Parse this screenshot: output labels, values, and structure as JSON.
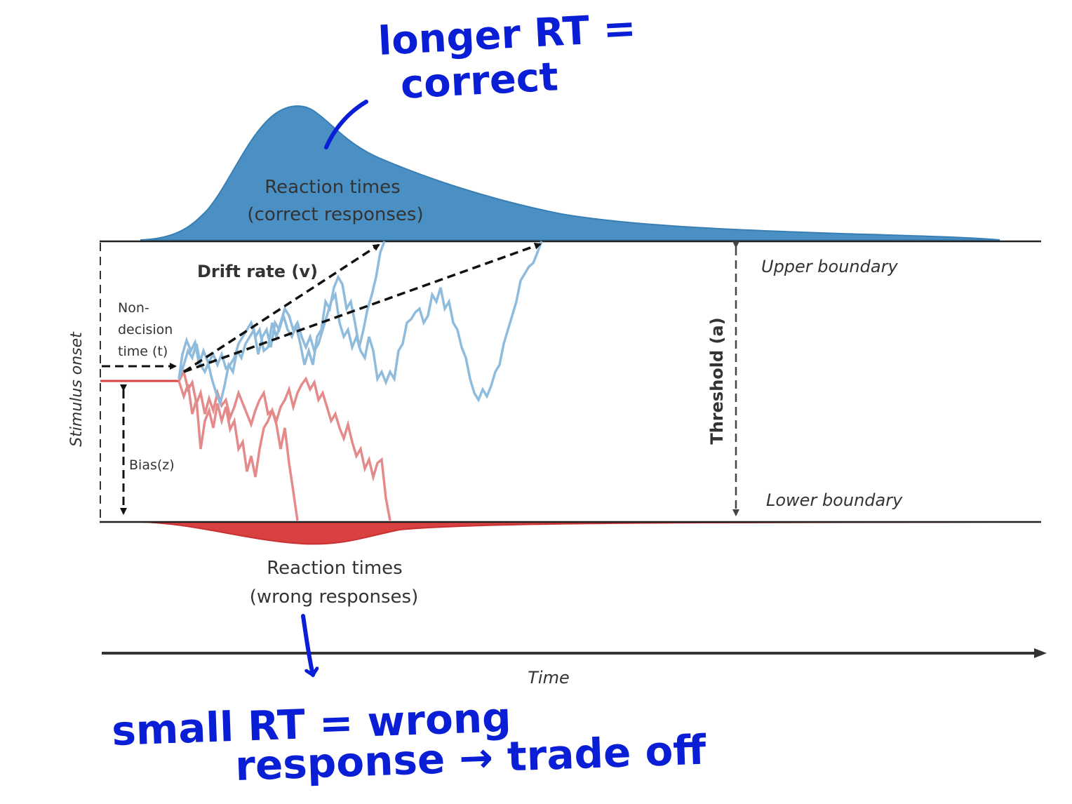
{
  "labels": {
    "correct_rt_line1": "Reaction times",
    "correct_rt_line2": "(correct responses)",
    "wrong_rt_line1": "Reaction times",
    "wrong_rt_line2": "(wrong responses)",
    "drift_rate": "Drift rate (v)",
    "non_decision_line1": "Non-",
    "non_decision_line2": "decision",
    "non_decision_line3": "time (t)",
    "bias": "Bias(z)",
    "stimulus_onset": "Stimulus onset",
    "threshold": "Threshold (a)",
    "upper_boundary": "Upper boundary",
    "lower_boundary": "Lower boundary",
    "time_axis": "Time"
  },
  "annotations": {
    "top_line1": "longer RT =",
    "top_line2": "correct",
    "bottom_line1": "small RT = wrong",
    "bottom_line2": "response → trade off"
  },
  "colors": {
    "correct": "#4a90c4",
    "correct_path": "#8fbbdc",
    "wrong": "#d94141",
    "wrong_path": "#e58a8a",
    "boundary": "#222222",
    "annotation_ink": "#0a1ed6"
  }
}
